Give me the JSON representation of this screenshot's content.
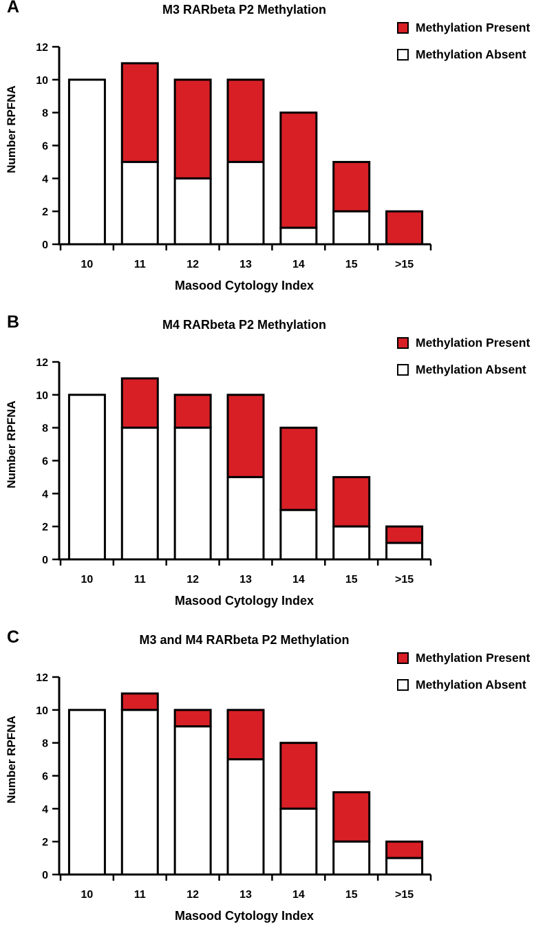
{
  "colors": {
    "present": "#d81f26",
    "absent": "#ffffff",
    "stroke": "#000000"
  },
  "legend": {
    "present": "Methylation Present",
    "absent": "Methylation Absent"
  },
  "chart_data": [
    {
      "type": "bar",
      "stacked": true,
      "panel": "A",
      "title": "M3 RARbeta P2 Methylation",
      "xlabel": "Masood Cytology Index",
      "ylabel": "Number RPFNA",
      "ylim": [
        0,
        12
      ],
      "yticks": [
        0,
        2,
        4,
        6,
        8,
        10,
        12
      ],
      "categories": [
        "10",
        "11",
        "12",
        "13",
        "14",
        "15",
        ">15"
      ],
      "series": [
        {
          "name": "Methylation Absent",
          "values": [
            10,
            5,
            4,
            5,
            1,
            2,
            0
          ]
        },
        {
          "name": "Methylation Present",
          "values": [
            0,
            6,
            6,
            5,
            7,
            3,
            2
          ]
        }
      ]
    },
    {
      "type": "bar",
      "stacked": true,
      "panel": "B",
      "title": "M4 RARbeta P2 Methylation",
      "xlabel": "Masood Cytology Index",
      "ylabel": "Number RPFNA",
      "ylim": [
        0,
        12
      ],
      "yticks": [
        0,
        2,
        4,
        6,
        8,
        10,
        12
      ],
      "categories": [
        "10",
        "11",
        "12",
        "13",
        "14",
        "15",
        ">15"
      ],
      "series": [
        {
          "name": "Methylation Absent",
          "values": [
            10,
            8,
            8,
            5,
            3,
            2,
            1
          ]
        },
        {
          "name": "Methylation Present",
          "values": [
            0,
            3,
            2,
            5,
            5,
            3,
            1
          ]
        }
      ]
    },
    {
      "type": "bar",
      "stacked": true,
      "panel": "C",
      "title": "M3 and M4 RARbeta P2 Methylation",
      "xlabel": "Masood Cytology Index",
      "ylabel": "Number RPFNA",
      "ylim": [
        0,
        12
      ],
      "yticks": [
        0,
        2,
        4,
        6,
        8,
        10,
        12
      ],
      "categories": [
        "10",
        "11",
        "12",
        "13",
        "14",
        "15",
        ">15"
      ],
      "series": [
        {
          "name": "Methylation Absent",
          "values": [
            10,
            10,
            9,
            7,
            4,
            2,
            1
          ]
        },
        {
          "name": "Methylation Present",
          "values": [
            0,
            1,
            1,
            3,
            4,
            3,
            1
          ]
        }
      ]
    }
  ]
}
